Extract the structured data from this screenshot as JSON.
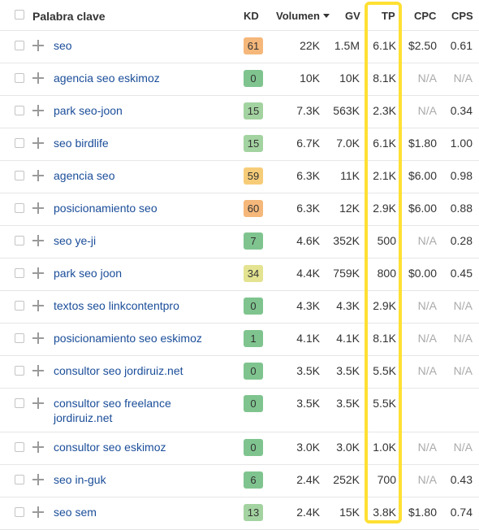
{
  "header": {
    "keyword": "Palabra clave",
    "kd": "KD",
    "volume": "Volumen",
    "gv": "GV",
    "tp": "TP",
    "cpc": "CPC",
    "cps": "CPS"
  },
  "rows": [
    {
      "keyword": "seo",
      "kd": "61",
      "kd_color": "#f5b77a",
      "volume": "22K",
      "gv": "1.5M",
      "tp": "6.1K",
      "cpc": "$2.50",
      "cps": "0.61"
    },
    {
      "keyword": "agencia seo eskimoz",
      "kd": "0",
      "kd_color": "#7fc48f",
      "volume": "10K",
      "gv": "10K",
      "tp": "8.1K",
      "cpc": "N/A",
      "cps": "N/A"
    },
    {
      "keyword": "park seo-joon",
      "kd": "15",
      "kd_color": "#a3d3a0",
      "volume": "7.3K",
      "gv": "563K",
      "tp": "2.3K",
      "cpc": "N/A",
      "cps": "0.34"
    },
    {
      "keyword": "seo birdlife",
      "kd": "15",
      "kd_color": "#a3d3a0",
      "volume": "6.7K",
      "gv": "7.0K",
      "tp": "6.1K",
      "cpc": "$1.80",
      "cps": "1.00"
    },
    {
      "keyword": "agencia seo",
      "kd": "59",
      "kd_color": "#f7cc78",
      "volume": "6.3K",
      "gv": "11K",
      "tp": "2.1K",
      "cpc": "$6.00",
      "cps": "0.98"
    },
    {
      "keyword": "posicionamiento seo",
      "kd": "60",
      "kd_color": "#f5b77a",
      "volume": "6.3K",
      "gv": "12K",
      "tp": "2.9K",
      "cpc": "$6.00",
      "cps": "0.88"
    },
    {
      "keyword": "seo ye-ji",
      "kd": "7",
      "kd_color": "#7fc48f",
      "volume": "4.6K",
      "gv": "352K",
      "tp": "500",
      "cpc": "N/A",
      "cps": "0.28"
    },
    {
      "keyword": "park seo joon",
      "kd": "34",
      "kd_color": "#e3e391",
      "volume": "4.4K",
      "gv": "759K",
      "tp": "800",
      "cpc": "$0.00",
      "cps": "0.45"
    },
    {
      "keyword": "textos seo linkcontentpro",
      "kd": "0",
      "kd_color": "#7fc48f",
      "volume": "4.3K",
      "gv": "4.3K",
      "tp": "2.9K",
      "cpc": "N/A",
      "cps": "N/A"
    },
    {
      "keyword": "posicionamiento seo eskimoz",
      "kd": "1",
      "kd_color": "#7fc48f",
      "volume": "4.1K",
      "gv": "4.1K",
      "tp": "8.1K",
      "cpc": "N/A",
      "cps": "N/A"
    },
    {
      "keyword": "consultor seo jordiruiz.net",
      "kd": "0",
      "kd_color": "#7fc48f",
      "volume": "3.5K",
      "gv": "3.5K",
      "tp": "5.5K",
      "cpc": "N/A",
      "cps": "N/A"
    },
    {
      "keyword": "consultor seo freelance jordiruiz.net",
      "kd": "0",
      "kd_color": "#7fc48f",
      "volume": "3.5K",
      "gv": "3.5K",
      "tp": "5.5K",
      "cpc": "",
      "cps": ""
    },
    {
      "keyword": "consultor seo eskimoz",
      "kd": "0",
      "kd_color": "#7fc48f",
      "volume": "3.0K",
      "gv": "3.0K",
      "tp": "1.0K",
      "cpc": "N/A",
      "cps": "N/A"
    },
    {
      "keyword": "seo in-guk",
      "kd": "6",
      "kd_color": "#7fc48f",
      "volume": "2.4K",
      "gv": "252K",
      "tp": "700",
      "cpc": "N/A",
      "cps": "0.43"
    },
    {
      "keyword": "seo sem",
      "kd": "13",
      "kd_color": "#a3d3a0",
      "volume": "2.4K",
      "gv": "15K",
      "tp": "3.8K",
      "cpc": "$1.80",
      "cps": "0.74"
    }
  ],
  "highlight_color": "#ffe033",
  "link_color": "#1a4d99"
}
